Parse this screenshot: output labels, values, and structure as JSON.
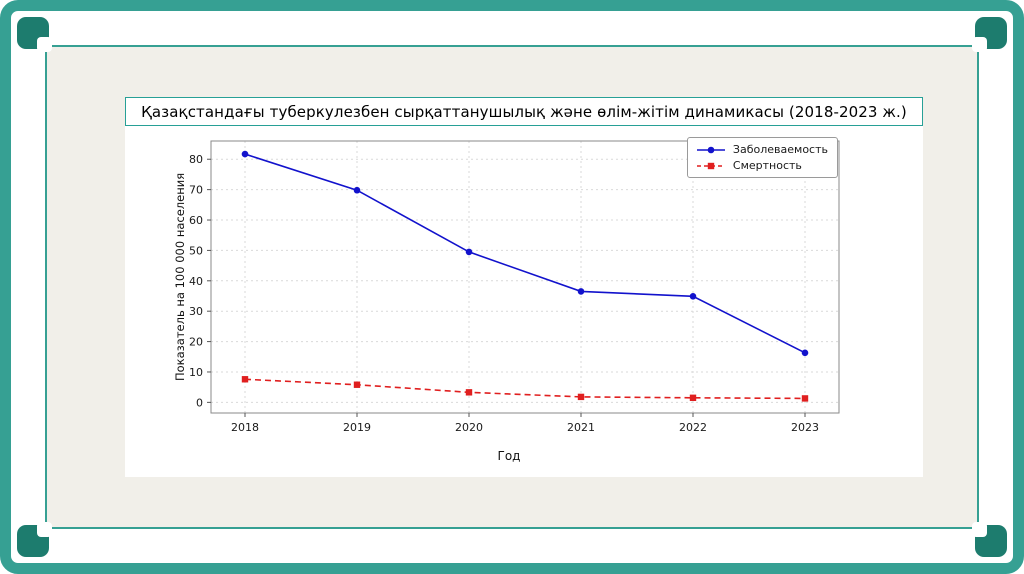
{
  "colors": {
    "frame_teal": "#36a093",
    "frame_dark": "#1d7c6e",
    "slide_bg": "#f1efe9",
    "title_border": "#27a096",
    "grid": "#d9d9d9",
    "spine": "#8a8a8a",
    "tick_text": "#1a1a1a"
  },
  "chart_data": {
    "type": "line",
    "title": "Қазақстандағы туберкулезбен сырқаттанушылық және өлім-жітім динамикасы (2018-2023 ж.)",
    "x": [
      2018,
      2019,
      2020,
      2021,
      2022,
      2023
    ],
    "series": [
      {
        "name": "Заболеваемость",
        "color": "#1212cc",
        "marker": "circle",
        "line_style": "solid",
        "values": [
          81.7,
          69.8,
          49.5,
          36.5,
          34.9,
          16.3
        ]
      },
      {
        "name": "Смертность",
        "color": "#e01f1f",
        "marker": "square",
        "line_style": "dashed",
        "values": [
          7.6,
          5.8,
          3.3,
          1.8,
          1.5,
          1.3
        ]
      }
    ],
    "xlabel": "Год",
    "ylabel": "Показатель на 100 000 населения",
    "ylim": [
      -3.5,
      86
    ],
    "yticks": [
      0,
      10,
      20,
      30,
      40,
      50,
      60,
      70,
      80
    ],
    "grid": true,
    "legend_position": "upper right"
  }
}
